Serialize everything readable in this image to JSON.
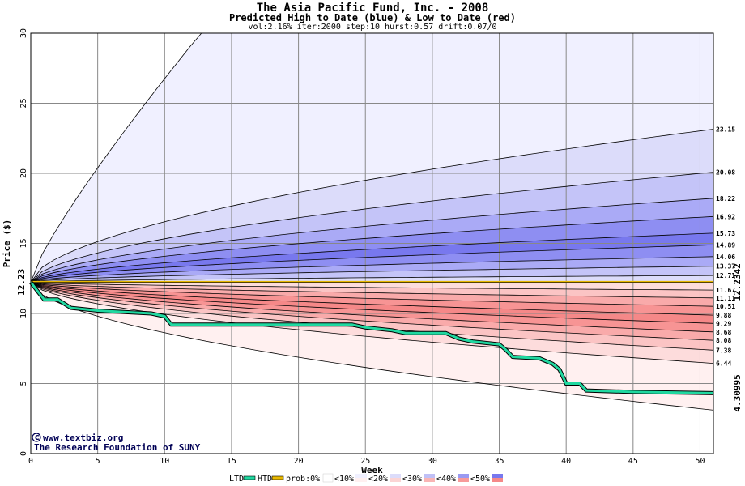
{
  "chart_data": {
    "type": "area",
    "title": "The Asia Pacific Fund, Inc. - 2008",
    "subtitle": "Predicted High to Date (blue) &  Low to Date (red)",
    "params": "vol:2.16% iter:2000 step:10 hurst:0.57 drift:0.07/0",
    "xlabel": "Week",
    "ylabel": "Price ($)",
    "xlim": [
      0,
      51
    ],
    "ylim": [
      0,
      30
    ],
    "xticks": [
      0,
      5,
      10,
      15,
      20,
      25,
      30,
      35,
      40,
      45,
      50
    ],
    "yticks": [
      0,
      5,
      10,
      15,
      20,
      25,
      30
    ],
    "start_price": 12.23,
    "start_label": "12.23",
    "current_price": 12.2342,
    "current_label": "12.2342",
    "last_low": 4.30995,
    "last_low_label": "4.30995",
    "high_bands_end": [
      15.73,
      16.92,
      18.22,
      20.08,
      23.15
    ],
    "high_bands_end_labels": [
      "15.73",
      "16.92",
      "18.22",
      "20.08",
      "23.15"
    ],
    "high_inner_end": [
      12.71,
      13.37,
      14.06,
      14.89
    ],
    "high_inner_end_labels": [
      "12.71",
      "13.37",
      "14.06",
      "14.89"
    ],
    "low_bands_end": [
      11.67,
      11.11,
      10.51,
      9.88,
      9.29,
      8.68,
      8.08,
      7.38,
      6.44
    ],
    "low_bands_end_labels": [
      "11.67",
      "11.11",
      "10.51",
      "9.88",
      "9.29",
      "8.68",
      "8.08",
      "7.38",
      "6.44"
    ],
    "outer_high_end": 30,
    "outer_low_end": 3.1,
    "ltd_series": {
      "name": "LTD",
      "x": [
        0,
        0.5,
        1,
        2,
        2.5,
        3,
        5,
        9,
        10,
        10.5,
        20,
        24,
        25,
        27,
        28,
        31,
        32,
        33,
        35,
        35.5,
        36,
        38,
        39,
        39.5,
        40,
        41,
        41.5,
        45,
        51
      ],
      "y": [
        12.23,
        11.6,
        11.0,
        11.0,
        10.7,
        10.4,
        10.2,
        10.0,
        9.8,
        9.2,
        9.2,
        9.2,
        9.0,
        8.8,
        8.6,
        8.6,
        8.2,
        8.0,
        7.8,
        7.4,
        6.9,
        6.8,
        6.4,
        6.0,
        5.0,
        5.0,
        4.5,
        4.4,
        4.31
      ]
    },
    "legend": {
      "ltd": "LTD",
      "htd": "HTD",
      "prob": "prob:0%",
      "bins": [
        "<10%",
        "<20%",
        "<30%",
        "<40%",
        "<50%"
      ]
    },
    "colors": {
      "high": [
        "#f0f0ff",
        "#dcdcfa",
        "#c4c4f8",
        "#aaaaf6",
        "#8e8ef2",
        "#7878ee",
        "#8e8ef2",
        "#aaaaf6",
        "#c4c4f8",
        "#dcdcfa"
      ],
      "low": [
        "#fff0f0",
        "#fddcdc",
        "#fbc4c4",
        "#f9aaaa",
        "#f79494",
        "#f58888",
        "#f79494",
        "#f9aaaa",
        "#fbc4c4",
        "#fddcdc"
      ],
      "ltd": "#20d8a0",
      "htd": "#e8b800"
    },
    "credit": "www.textbiz.org",
    "credit2": "The Research Foundation of SUNY"
  }
}
